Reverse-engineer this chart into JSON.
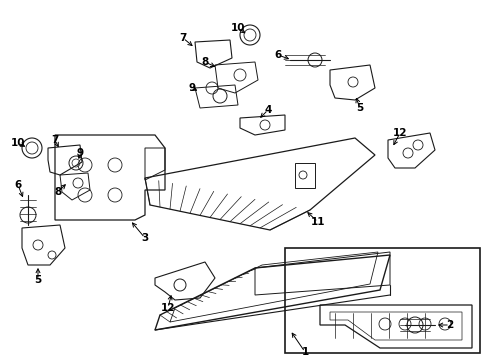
{
  "title": "",
  "bg_color": "#ffffff",
  "line_color": "#1a1a1a",
  "fig_width": 4.89,
  "fig_height": 3.6,
  "dpi": 100
}
